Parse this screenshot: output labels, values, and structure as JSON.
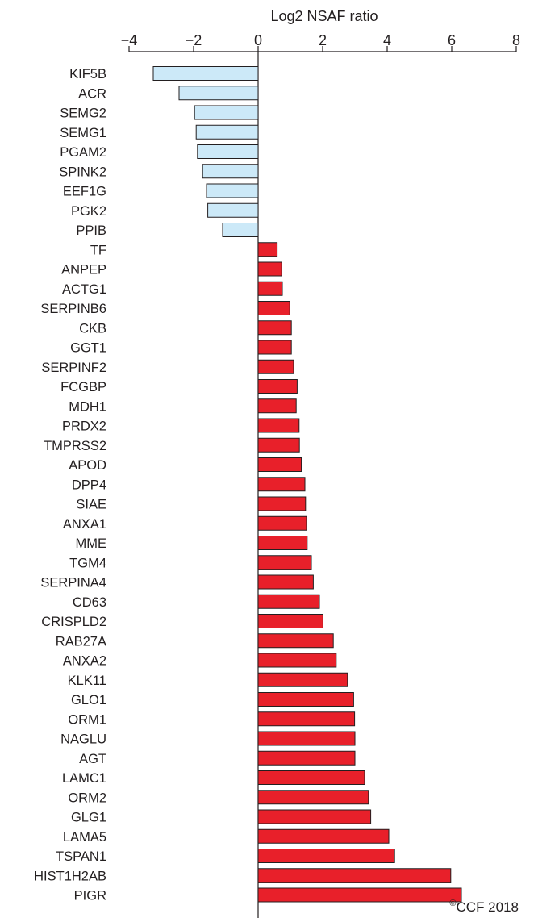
{
  "chart_data": {
    "type": "bar",
    "orientation": "horizontal",
    "xlabel": "Log2 NSAF ratio",
    "xlim": [
      -4,
      8
    ],
    "xticks": [
      -4,
      -2,
      0,
      2,
      4,
      6,
      8
    ],
    "xtick_labels": [
      "−4",
      "−2",
      "0",
      "2",
      "4",
      "6",
      "8"
    ],
    "axis_position": "top",
    "grid": false,
    "categories": [
      "KIF5B",
      "ACR",
      "SEMG2",
      "SEMG1",
      "PGAM2",
      "SPINK2",
      "EEF1G",
      "PGK2",
      "PPIB",
      "TF",
      "ANPEP",
      "ACTG1",
      "SERPINB6",
      "CKB",
      "GGT1",
      "SERPINF2",
      "FCGBP",
      "MDH1",
      "PRDX2",
      "TMPRSS2",
      "APOD",
      "DPP4",
      "SIAE",
      "ANXA1",
      "MME",
      "TGM4",
      "SERPINA4",
      "CD63",
      "CRISPLD2",
      "RAB27A",
      "ANXA2",
      "KLK11",
      "GLO1",
      "ORM1",
      "NAGLU",
      "AGT",
      "LAMC1",
      "ORM2",
      "GLG1",
      "LAMA5",
      "TSPAN1",
      "HIST1H2AB",
      "PIGR"
    ],
    "values": [
      -3.25,
      -2.45,
      -1.97,
      -1.92,
      -1.88,
      -1.72,
      -1.6,
      -1.56,
      -1.1,
      0.59,
      0.73,
      0.75,
      0.98,
      1.03,
      1.03,
      1.1,
      1.21,
      1.18,
      1.27,
      1.28,
      1.34,
      1.45,
      1.47,
      1.5,
      1.52,
      1.65,
      1.71,
      1.9,
      2.01,
      2.33,
      2.42,
      2.77,
      2.96,
      2.99,
      3.0,
      3.0,
      3.3,
      3.42,
      3.49,
      4.05,
      4.23,
      5.97,
      6.3
    ],
    "colors": {
      "negative": "#cce9f8",
      "positive": "#e8202a",
      "stroke": "#231f20"
    }
  },
  "copyright": {
    "symbol": "©",
    "text": "CCF 2018"
  }
}
